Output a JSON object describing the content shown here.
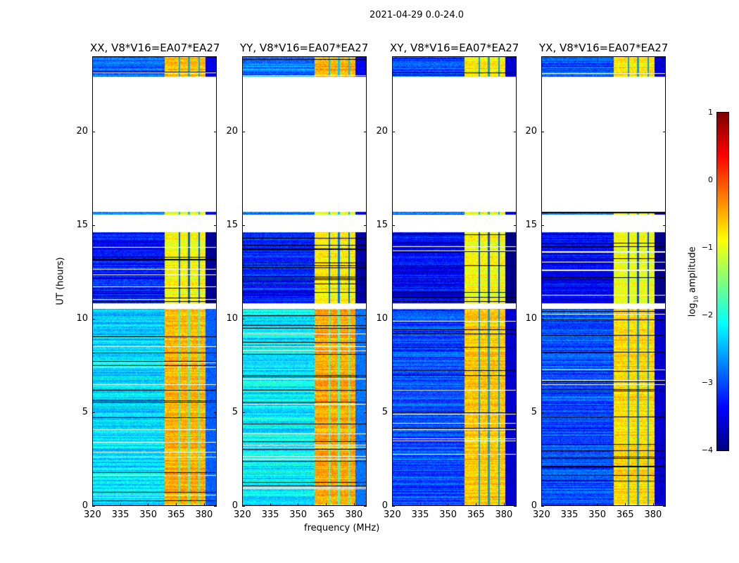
{
  "chart_data": {
    "type": "heatmap",
    "suptitle": "2021-04-29 0.0-24.0",
    "xlabel": "frequency (MHz)",
    "ylabel": "UT (hours)",
    "xlim": [
      320,
      387
    ],
    "ylim": [
      0,
      24
    ],
    "xticks": [
      "320",
      "335",
      "350",
      "365",
      "380"
    ],
    "xtick_values": [
      320,
      335,
      350,
      365,
      380
    ],
    "yticks": [
      "0",
      "5",
      "10",
      "15",
      "20"
    ],
    "ytick_values": [
      0,
      5,
      10,
      15,
      20
    ],
    "colorbar": {
      "label": "log10 amplitude",
      "label_main": "log",
      "label_sub": "10",
      "label_tail": " amplitude",
      "min": -4,
      "max": 1,
      "ticks": [
        "1",
        "0",
        "−1",
        "−2",
        "−3",
        "−4"
      ],
      "tick_values": [
        1,
        0,
        -1,
        -2,
        -3,
        -4
      ]
    },
    "band": {
      "start_mhz": 359,
      "end_mhz": 381,
      "notches_mhz": [
        367,
        372,
        377.5
      ]
    },
    "panels": [
      {
        "title": "XX, V8*V16=EA07*EA27",
        "segments": [
          {
            "t0": 0,
            "t1": 10.5,
            "bg": -2.3,
            "band": -0.5
          },
          {
            "t0": 10.8,
            "t1": 14.6,
            "bg": -3.3,
            "band": -0.9
          },
          {
            "t0": 15.55,
            "t1": 15.7,
            "bg": -2.8,
            "band": -1.0
          },
          {
            "t0": 22.9,
            "t1": 24,
            "bg": -2.9,
            "band": -0.6
          }
        ]
      },
      {
        "title": "YY, V8*V16=EA07*EA27",
        "segments": [
          {
            "t0": 0,
            "t1": 10.5,
            "bg": -2.2,
            "band": -0.45
          },
          {
            "t0": 10.8,
            "t1": 14.6,
            "bg": -3.2,
            "band": -0.8
          },
          {
            "t0": 15.55,
            "t1": 15.7,
            "bg": -2.8,
            "band": -1.0
          },
          {
            "t0": 22.9,
            "t1": 24,
            "bg": -2.8,
            "band": -0.5
          }
        ]
      },
      {
        "title": "XY, V8*V16=EA07*EA27",
        "segments": [
          {
            "t0": 0,
            "t1": 10.5,
            "bg": -3.0,
            "band": -0.6
          },
          {
            "t0": 10.8,
            "t1": 14.6,
            "bg": -3.4,
            "band": -0.9
          },
          {
            "t0": 15.55,
            "t1": 15.7,
            "bg": -2.9,
            "band": -1.0
          },
          {
            "t0": 22.9,
            "t1": 24,
            "bg": -3.0,
            "band": -0.8
          }
        ]
      },
      {
        "title": "YX, V8*V16=EA07*EA27",
        "segments": [
          {
            "t0": 0,
            "t1": 10.5,
            "bg": -3.0,
            "band": -0.7
          },
          {
            "t0": 10.8,
            "t1": 14.6,
            "bg": -3.4,
            "band": -0.95
          },
          {
            "t0": 15.55,
            "t1": 15.7,
            "bg": -2.9,
            "band": -1.0
          },
          {
            "t0": 22.9,
            "t1": 24,
            "bg": -3.0,
            "band": -0.8
          }
        ]
      }
    ]
  }
}
